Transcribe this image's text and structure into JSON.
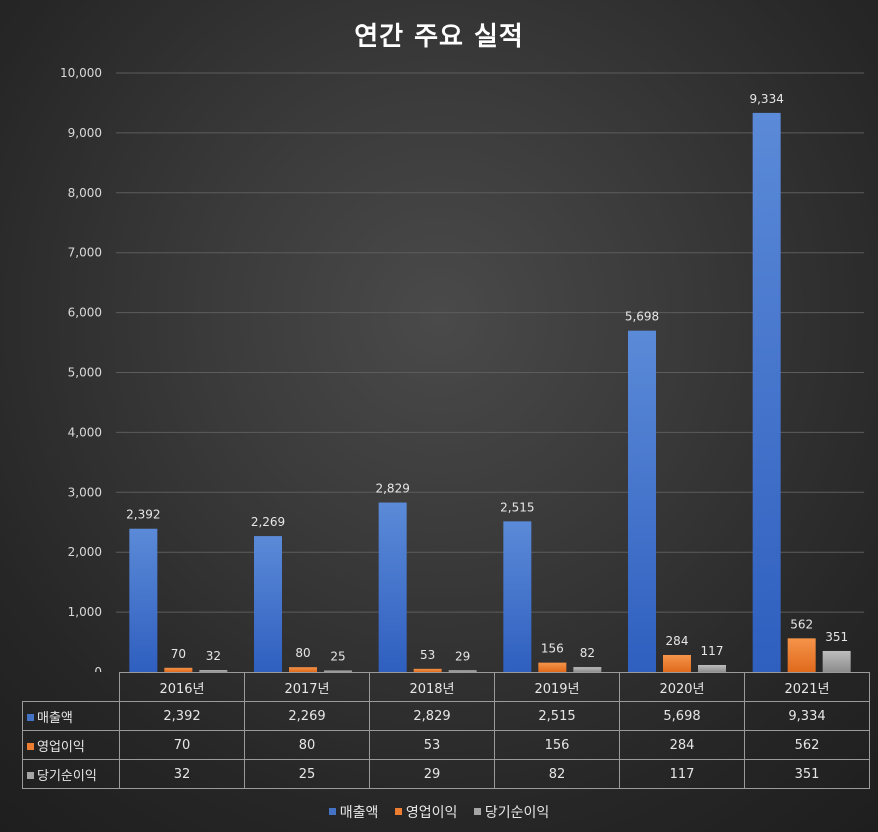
{
  "title": "연간 주요 실적",
  "chart_data": {
    "type": "bar",
    "title": "연간 주요 실적",
    "categories": [
      "2016년",
      "2017년",
      "2018년",
      "2019년",
      "2020년",
      "2021년"
    ],
    "series": [
      {
        "name": "매출액",
        "color": "#4472c4",
        "values": [
          2392,
          2269,
          2829,
          2515,
          5698,
          9334
        ]
      },
      {
        "name": "영업이익",
        "color": "#ed7d31",
        "values": [
          70,
          80,
          53,
          156,
          284,
          562
        ]
      },
      {
        "name": "당기순이익",
        "color": "#a5a5a5",
        "values": [
          32,
          25,
          29,
          82,
          117,
          351
        ]
      }
    ],
    "yticks": [
      "0",
      "1,000",
      "2,000",
      "3,000",
      "4,000",
      "5,000",
      "6,000",
      "7,000",
      "8,000",
      "9,000",
      "10,000"
    ],
    "ylim": [
      0,
      10000
    ],
    "grid": true,
    "legend_position": "bottom",
    "data_table": true
  }
}
